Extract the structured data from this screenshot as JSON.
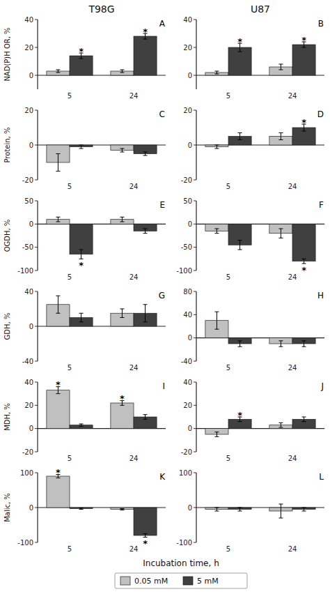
{
  "chart_data": [
    {
      "type": "bar",
      "title": "T98G",
      "ylabel": "NAD(P)H OR, %",
      "annotations": [
        "A"
      ],
      "categories": [
        "5",
        "24"
      ],
      "ylim": [
        -10,
        40
      ],
      "yticks": [
        0,
        20,
        40
      ],
      "series": [
        {
          "name": "0.05 mM",
          "color": "#c0c0c0",
          "values": [
            3,
            3
          ],
          "errors": [
            1,
            1
          ],
          "annotations": [
            null,
            null
          ]
        },
        {
          "name": "5 mM",
          "color": "#404040",
          "values": [
            14,
            28
          ],
          "errors": [
            2,
            2
          ],
          "annotations": [
            "*",
            "*"
          ]
        }
      ]
    },
    {
      "type": "bar",
      "title": "U87",
      "annotations": [
        "B"
      ],
      "categories": [
        "5",
        "24"
      ],
      "ylim": [
        -10,
        40
      ],
      "yticks": [
        0,
        20,
        40
      ],
      "series": [
        {
          "name": "0.05 mM",
          "color": "#c0c0c0",
          "values": [
            2,
            6
          ],
          "errors": [
            1,
            2
          ],
          "annotations": [
            null,
            null
          ]
        },
        {
          "name": "5 mM",
          "color": "#404040",
          "values": [
            20,
            22
          ],
          "errors": [
            3,
            2
          ],
          "annotations": [
            "*",
            "*"
          ]
        }
      ]
    },
    {
      "type": "bar",
      "ylabel": "Protein, %",
      "annotations": [
        "C"
      ],
      "categories": [
        "5",
        "24"
      ],
      "ylim": [
        -20,
        20
      ],
      "yticks": [
        -20,
        0,
        20
      ],
      "series": [
        {
          "name": "0.05 mM",
          "color": "#c0c0c0",
          "values": [
            -10,
            -3
          ],
          "errors": [
            5,
            1
          ],
          "annotations": [
            null,
            null
          ]
        },
        {
          "name": "5 mM",
          "color": "#404040",
          "values": [
            -1,
            -5
          ],
          "errors": [
            1,
            1
          ],
          "annotations": [
            null,
            null
          ]
        }
      ]
    },
    {
      "type": "bar",
      "annotations": [
        "D"
      ],
      "categories": [
        "5",
        "24"
      ],
      "ylim": [
        -20,
        20
      ],
      "yticks": [
        -20,
        0,
        20
      ],
      "series": [
        {
          "name": "0.05 mM",
          "color": "#c0c0c0",
          "values": [
            -1,
            5
          ],
          "errors": [
            1,
            2
          ],
          "annotations": [
            null,
            null
          ]
        },
        {
          "name": "5 mM",
          "color": "#404040",
          "values": [
            5,
            10
          ],
          "errors": [
            2,
            2
          ],
          "annotations": [
            null,
            "*"
          ]
        }
      ]
    },
    {
      "type": "bar",
      "ylabel": "OGDH, %",
      "annotations": [
        "E"
      ],
      "categories": [
        "5",
        "24"
      ],
      "ylim": [
        -100,
        50
      ],
      "yticks": [
        -100,
        -50,
        0,
        50
      ],
      "series": [
        {
          "name": "0.05 mM",
          "color": "#c0c0c0",
          "values": [
            10,
            10
          ],
          "errors": [
            5,
            5
          ],
          "annotations": [
            null,
            null
          ]
        },
        {
          "name": "5 mM",
          "color": "#404040",
          "values": [
            -65,
            -15
          ],
          "errors": [
            10,
            5
          ],
          "annotations": [
            "*",
            null
          ]
        }
      ]
    },
    {
      "type": "bar",
      "annotations": [
        "F"
      ],
      "categories": [
        "5",
        "24"
      ],
      "ylim": [
        -100,
        50
      ],
      "yticks": [
        -100,
        -50,
        0,
        50
      ],
      "series": [
        {
          "name": "0.05 mM",
          "color": "#c0c0c0",
          "values": [
            -15,
            -20
          ],
          "errors": [
            5,
            10
          ],
          "annotations": [
            null,
            null
          ]
        },
        {
          "name": "5 mM",
          "color": "#404040",
          "values": [
            -45,
            -80
          ],
          "errors": [
            10,
            5
          ],
          "annotations": [
            null,
            "*"
          ]
        }
      ]
    },
    {
      "type": "bar",
      "ylabel": "GDH, %",
      "annotations": [
        "G"
      ],
      "categories": [
        "5",
        "24"
      ],
      "ylim": [
        -40,
        40
      ],
      "yticks": [
        -40,
        0,
        40
      ],
      "series": [
        {
          "name": "0.05 mM",
          "color": "#c0c0c0",
          "values": [
            25,
            15
          ],
          "errors": [
            10,
            5
          ],
          "annotations": [
            null,
            null
          ]
        },
        {
          "name": "5 mM",
          "color": "#404040",
          "values": [
            10,
            15
          ],
          "errors": [
            5,
            10
          ],
          "annotations": [
            null,
            null
          ]
        }
      ]
    },
    {
      "type": "bar",
      "annotations": [
        "H"
      ],
      "categories": [
        "5",
        "24"
      ],
      "ylim": [
        -40,
        80
      ],
      "yticks": [
        -40,
        0,
        40,
        80
      ],
      "series": [
        {
          "name": "0.05 mM",
          "color": "#c0c0c0",
          "values": [
            30,
            -10
          ],
          "errors": [
            15,
            5
          ],
          "annotations": [
            null,
            null
          ]
        },
        {
          "name": "5 mM",
          "color": "#404040",
          "values": [
            -10,
            -10
          ],
          "errors": [
            5,
            5
          ],
          "annotations": [
            null,
            null
          ]
        }
      ]
    },
    {
      "type": "bar",
      "ylabel": "MDH, %",
      "annotations": [
        "I"
      ],
      "categories": [
        "5",
        "24"
      ],
      "ylim": [
        -20,
        40
      ],
      "yticks": [
        -20,
        0,
        20,
        40
      ],
      "series": [
        {
          "name": "0.05 mM",
          "color": "#c0c0c0",
          "values": [
            33,
            22
          ],
          "errors": [
            3,
            2
          ],
          "annotations": [
            "*",
            "*"
          ]
        },
        {
          "name": "5 mM",
          "color": "#404040",
          "values": [
            3,
            10
          ],
          "errors": [
            1,
            2
          ],
          "annotations": [
            null,
            null
          ]
        }
      ]
    },
    {
      "type": "bar",
      "annotations": [
        "J"
      ],
      "categories": [
        "5",
        "24"
      ],
      "ylim": [
        -20,
        40
      ],
      "yticks": [
        -20,
        0,
        20,
        40
      ],
      "series": [
        {
          "name": "0.05 mM",
          "color": "#c0c0c0",
          "values": [
            -5,
            3
          ],
          "errors": [
            2,
            2
          ],
          "annotations": [
            null,
            null
          ]
        },
        {
          "name": "5 mM",
          "color": "#404040",
          "values": [
            8,
            8
          ],
          "errors": [
            2,
            2
          ],
          "annotations": [
            "*",
            null
          ]
        }
      ]
    },
    {
      "type": "bar",
      "ylabel": "Malic, %",
      "xlabel": "Incubation time, h",
      "annotations": [
        "K"
      ],
      "categories": [
        "5",
        "24"
      ],
      "ylim": [
        -100,
        100
      ],
      "yticks": [
        -100,
        0,
        100
      ],
      "series": [
        {
          "name": "0.05 mM",
          "color": "#c0c0c0",
          "values": [
            90,
            -5
          ],
          "errors": [
            5,
            2
          ],
          "annotations": [
            "*",
            null
          ]
        },
        {
          "name": "5 mM",
          "color": "#404040",
          "values": [
            -3,
            -80
          ],
          "errors": [
            2,
            5
          ],
          "annotations": [
            null,
            "*"
          ]
        }
      ]
    },
    {
      "type": "bar",
      "annotations": [
        "L"
      ],
      "categories": [
        "5",
        "24"
      ],
      "ylim": [
        -100,
        100
      ],
      "yticks": [
        -100,
        0,
        100
      ],
      "series": [
        {
          "name": "0.05 mM",
          "color": "#c0c0c0",
          "values": [
            -5,
            -10
          ],
          "errors": [
            5,
            20
          ],
          "annotations": [
            null,
            null
          ]
        },
        {
          "name": "5 mM",
          "color": "#404040",
          "values": [
            -5,
            -5
          ],
          "errors": [
            5,
            5
          ],
          "annotations": [
            null,
            null
          ]
        }
      ]
    }
  ]
}
